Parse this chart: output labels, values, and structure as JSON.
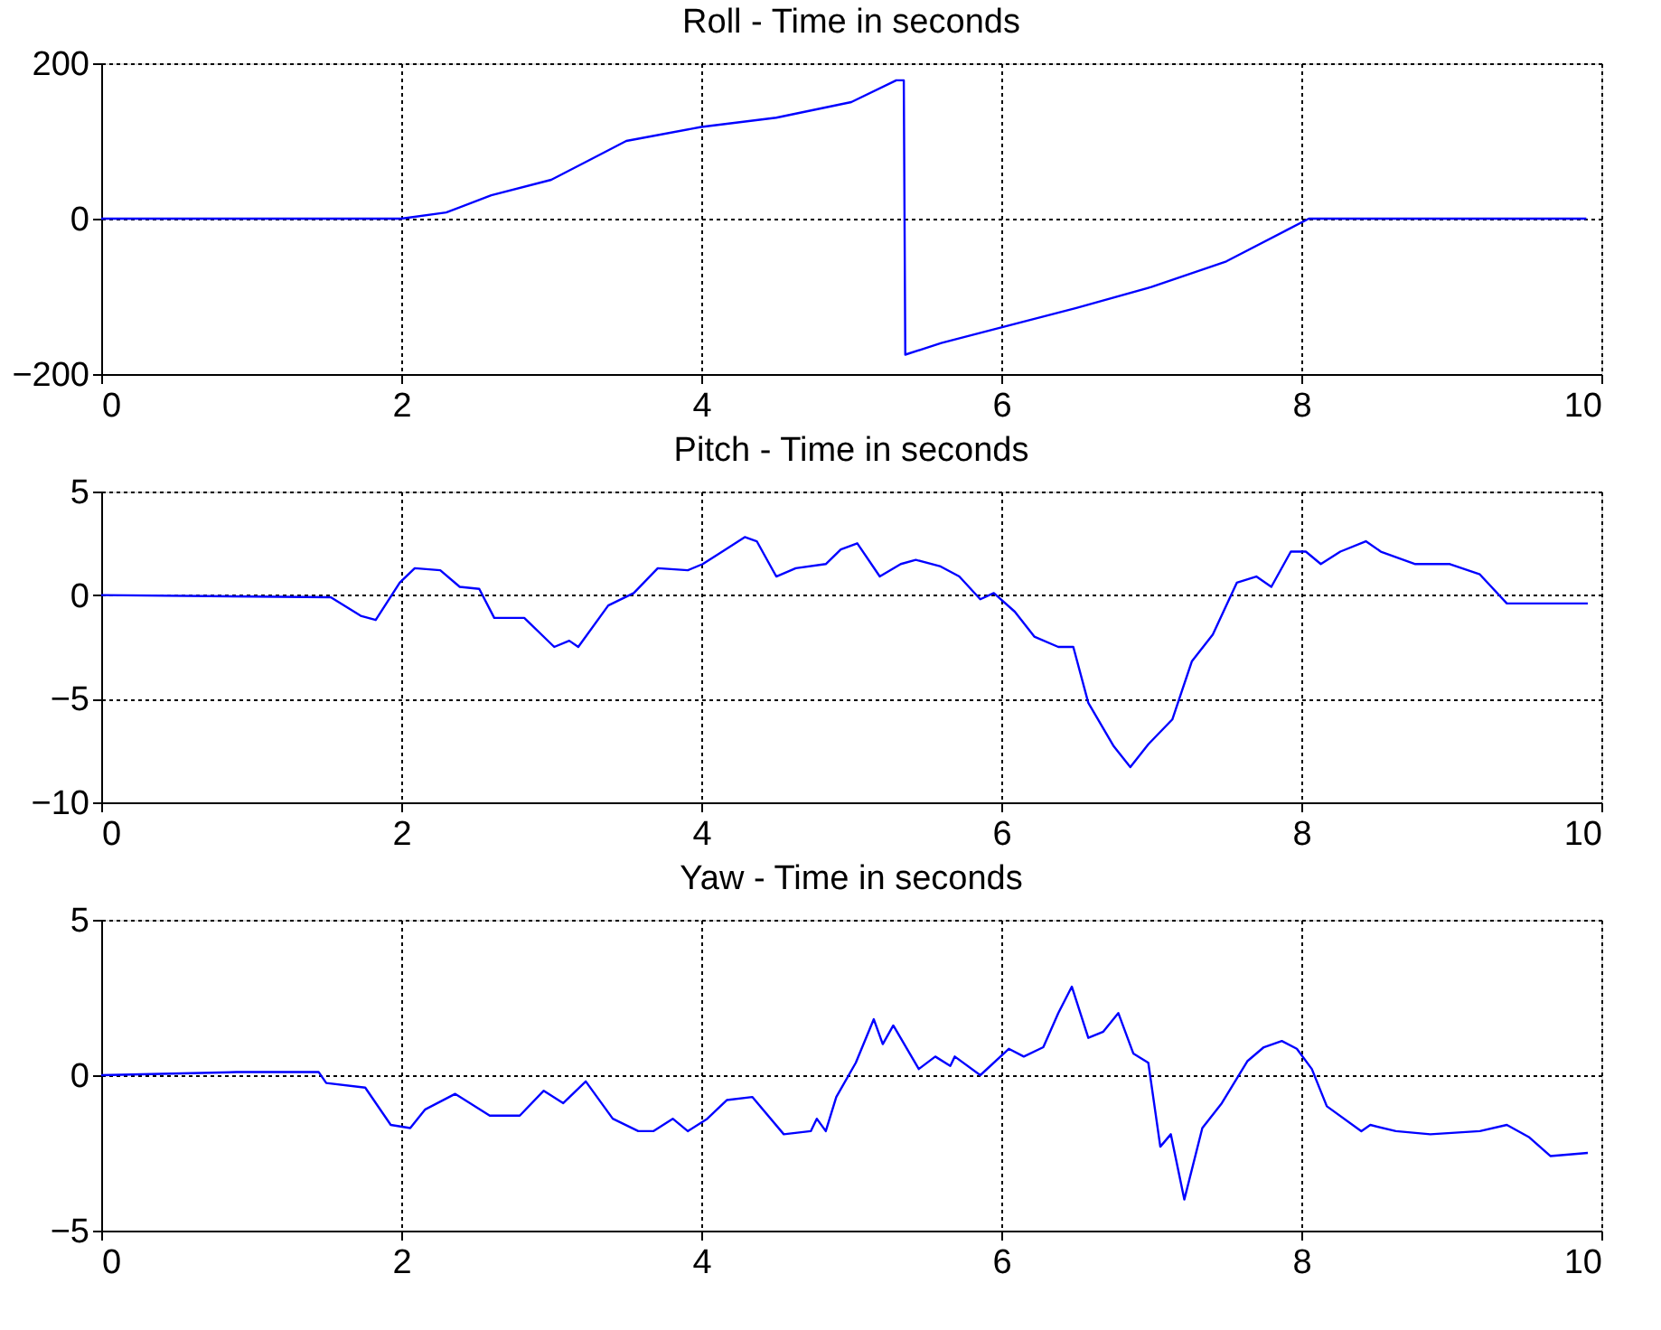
{
  "chart_data": [
    {
      "type": "line",
      "title": "Roll - Time in seconds",
      "color": "#0000ff",
      "grid": true,
      "xlim": [
        0,
        10
      ],
      "xticks": [
        0,
        2,
        4,
        6,
        8,
        10
      ],
      "ylim": [
        -200,
        200
      ],
      "yticks": [
        -200,
        0,
        200
      ],
      "x": [
        0,
        2.0,
        2.3,
        2.6,
        3.0,
        3.3,
        3.5,
        4.0,
        4.5,
        5.0,
        5.3,
        5.35,
        5.36,
        5.6,
        6.0,
        6.5,
        7.0,
        7.5,
        7.9,
        8.05,
        9.9
      ],
      "values": [
        0,
        0,
        8,
        30,
        50,
        80,
        100,
        118,
        130,
        150,
        178,
        178,
        -175,
        -160,
        -140,
        -115,
        -88,
        -55,
        -15,
        0,
        0
      ]
    },
    {
      "type": "line",
      "title": "Pitch - Time in seconds",
      "color": "#0000ff",
      "grid": true,
      "xlim": [
        0,
        10
      ],
      "xticks": [
        0,
        2,
        4,
        6,
        8,
        10
      ],
      "ylim": [
        -10,
        5
      ],
      "yticks": [
        -10,
        -5,
        0,
        5
      ],
      "x": [
        0,
        1.53,
        1.73,
        1.83,
        1.99,
        2.09,
        2.26,
        2.39,
        2.52,
        2.62,
        2.82,
        3.02,
        3.12,
        3.18,
        3.38,
        3.55,
        3.71,
        3.91,
        4.01,
        4.14,
        4.29,
        4.37,
        4.5,
        4.63,
        4.83,
        4.93,
        5.04,
        5.19,
        5.33,
        5.43,
        5.59,
        5.72,
        5.86,
        5.95,
        6.09,
        6.22,
        6.38,
        6.48,
        6.58,
        6.75,
        6.86,
        6.98,
        7.14,
        7.27,
        7.41,
        7.57,
        7.7,
        7.8,
        7.93,
        8.03,
        8.13,
        8.26,
        8.43,
        8.53,
        8.76,
        8.99,
        9.19,
        9.37,
        9.91
      ],
      "values": [
        0,
        -0.1,
        -1.0,
        -1.2,
        0.6,
        1.3,
        1.2,
        0.4,
        0.3,
        -1.1,
        -1.1,
        -2.5,
        -2.2,
        -2.5,
        -0.5,
        0.1,
        1.3,
        1.2,
        1.5,
        2.1,
        2.8,
        2.6,
        0.9,
        1.3,
        1.5,
        2.2,
        2.5,
        0.9,
        1.5,
        1.7,
        1.4,
        0.9,
        -0.2,
        0.1,
        -0.8,
        -2.0,
        -2.5,
        -2.5,
        -5.2,
        -7.3,
        -8.3,
        -7.2,
        -6.0,
        -3.2,
        -1.9,
        0.6,
        0.9,
        0.4,
        2.1,
        2.1,
        1.5,
        2.1,
        2.6,
        2.1,
        1.5,
        1.5,
        1.0,
        -0.4,
        -0.4
      ]
    },
    {
      "type": "line",
      "title": "Yaw - Time in seconds",
      "color": "#0000ff",
      "grid": true,
      "xlim": [
        0,
        10
      ],
      "xticks": [
        0,
        2,
        4,
        6,
        8,
        10
      ],
      "ylim": [
        -5,
        5
      ],
      "yticks": [
        -5,
        0,
        5
      ],
      "x": [
        0,
        0.9,
        1.45,
        1.5,
        1.76,
        1.93,
        2.06,
        2.16,
        2.36,
        2.59,
        2.79,
        2.95,
        3.08,
        3.23,
        3.41,
        3.58,
        3.68,
        3.81,
        3.91,
        4.04,
        4.17,
        4.34,
        4.55,
        4.73,
        4.77,
        4.83,
        4.9,
        5.03,
        5.15,
        5.21,
        5.28,
        5.45,
        5.56,
        5.66,
        5.69,
        5.86,
        6.05,
        6.15,
        6.28,
        6.38,
        6.47,
        6.58,
        6.68,
        6.78,
        6.88,
        6.98,
        7.06,
        7.13,
        7.22,
        7.34,
        7.47,
        7.64,
        7.75,
        7.87,
        7.97,
        8.07,
        8.17,
        8.4,
        8.46,
        8.63,
        8.86,
        9.19,
        9.37,
        9.52,
        9.66,
        9.91
      ],
      "values": [
        0,
        0.1,
        0.1,
        -0.25,
        -0.4,
        -1.6,
        -1.7,
        -1.1,
        -0.6,
        -1.3,
        -1.3,
        -0.5,
        -0.9,
        -0.2,
        -1.4,
        -1.8,
        -1.8,
        -1.4,
        -1.8,
        -1.4,
        -0.8,
        -0.7,
        -1.9,
        -1.8,
        -1.4,
        -1.8,
        -0.7,
        0.4,
        1.8,
        1.0,
        1.6,
        0.2,
        0.6,
        0.3,
        0.6,
        0,
        0.85,
        0.6,
        0.9,
        2.0,
        2.85,
        1.2,
        1.4,
        2.0,
        0.7,
        0.4,
        -2.3,
        -1.9,
        -4.0,
        -1.7,
        -0.9,
        0.45,
        0.9,
        1.1,
        0.85,
        0.2,
        -1.0,
        -1.8,
        -1.6,
        -1.8,
        -1.9,
        -1.8,
        -1.6,
        -2.0,
        -2.6,
        -2.5
      ]
    }
  ]
}
